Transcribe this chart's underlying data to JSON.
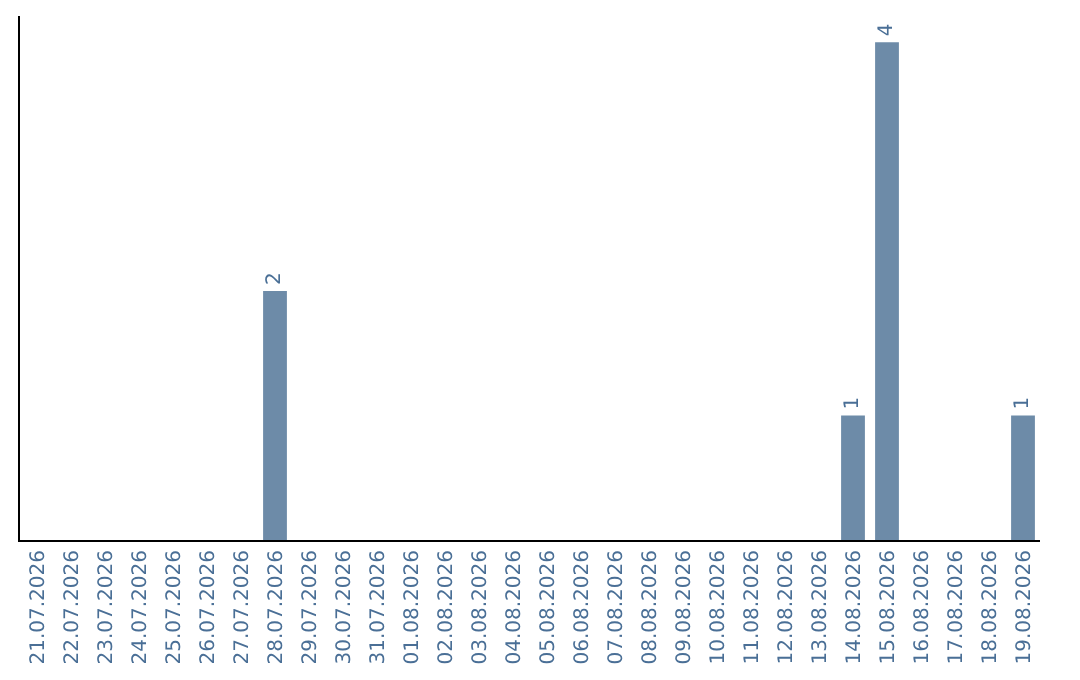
{
  "chart_data": {
    "type": "bar",
    "categories": [
      "21.07.2026",
      "22.07.2026",
      "23.07.2026",
      "24.07.2026",
      "25.07.2026",
      "26.07.2026",
      "27.07.2026",
      "28.07.2026",
      "29.07.2026",
      "30.07.2026",
      "31.07.2026",
      "01.08.2026",
      "02.08.2026",
      "03.08.2026",
      "04.08.2026",
      "05.08.2026",
      "06.08.2026",
      "07.08.2026",
      "08.08.2026",
      "09.08.2026",
      "10.08.2026",
      "11.08.2026",
      "12.08.2026",
      "13.08.2026",
      "14.08.2026",
      "15.08.2026",
      "16.08.2026",
      "17.08.2026",
      "18.08.2026",
      "19.08.2026"
    ],
    "values": [
      0,
      0,
      0,
      0,
      0,
      0,
      0,
      2,
      0,
      0,
      0,
      0,
      0,
      0,
      0,
      0,
      0,
      0,
      0,
      0,
      0,
      0,
      0,
      0,
      1,
      4,
      0,
      0,
      0,
      1
    ],
    "value_labels": [
      null,
      null,
      null,
      null,
      null,
      null,
      null,
      "2",
      null,
      null,
      null,
      null,
      null,
      null,
      null,
      null,
      null,
      null,
      null,
      null,
      null,
      null,
      null,
      null,
      "1",
      "4",
      null,
      null,
      null,
      "1"
    ],
    "color": "#6d8ba8",
    "tick_labels": "x",
    "legend": false
  }
}
